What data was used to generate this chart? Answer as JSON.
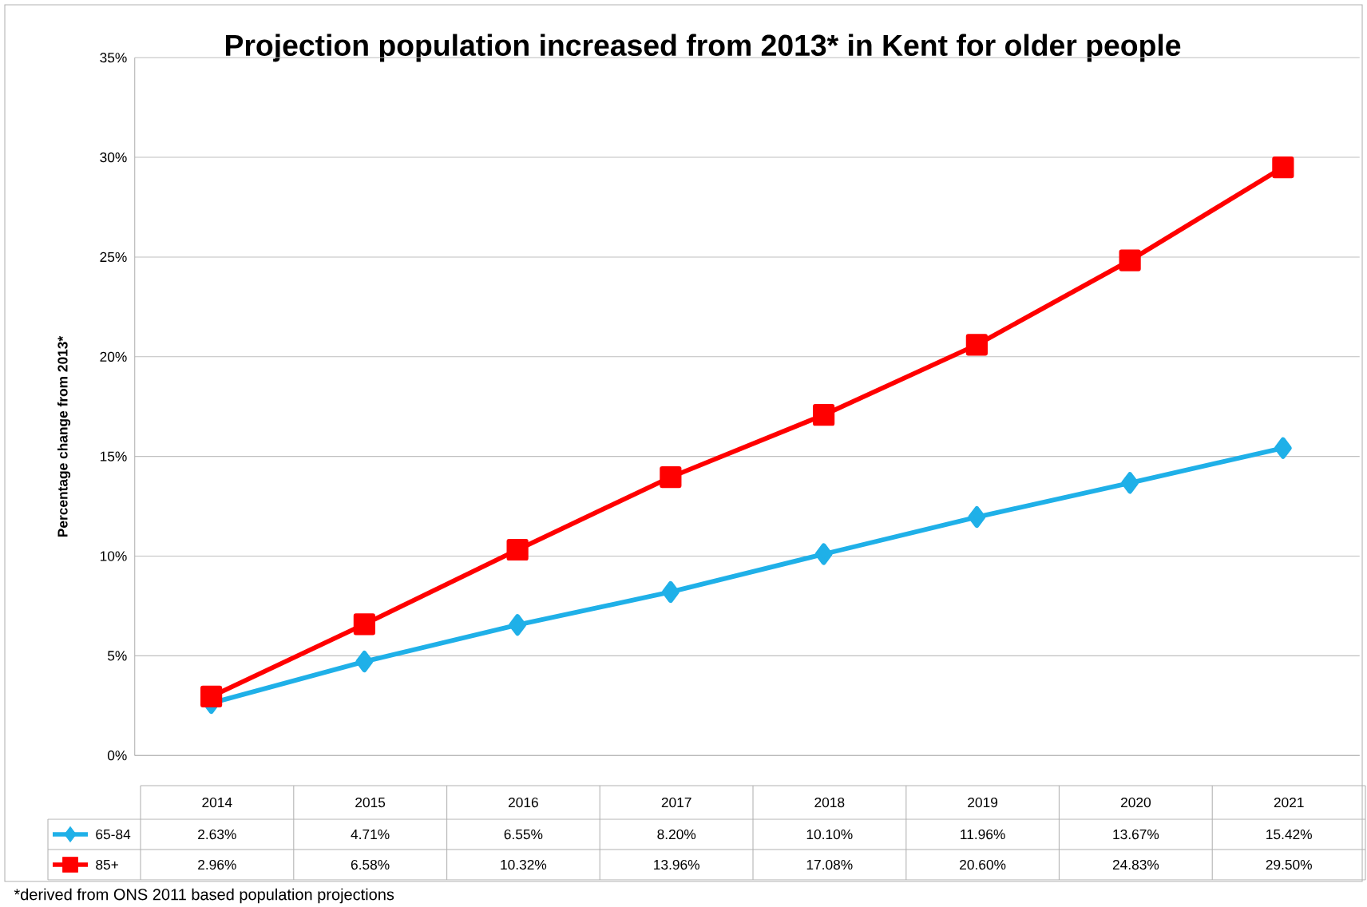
{
  "chart_data": {
    "type": "line",
    "title": "Projection population increased from 2013* in Kent for older people",
    "ylabel": "Percentage change from 2013*",
    "categories": [
      "2014",
      "2015",
      "2016",
      "2017",
      "2018",
      "2019",
      "2020",
      "2021"
    ],
    "series": [
      {
        "name": "65-84",
        "color": "#1fb0e8",
        "marker": "diamond",
        "values": [
          2.63,
          4.71,
          6.55,
          8.2,
          10.1,
          11.96,
          13.67,
          15.42
        ],
        "value_labels": [
          "2.63%",
          "4.71%",
          "6.55%",
          "8.20%",
          "10.10%",
          "11.96%",
          "13.67%",
          "15.42%"
        ]
      },
      {
        "name": "85+",
        "color": "#ff0000",
        "marker": "square",
        "values": [
          2.96,
          6.58,
          10.32,
          13.96,
          17.08,
          20.6,
          24.83,
          29.5
        ],
        "value_labels": [
          "2.96%",
          "6.58%",
          "10.32%",
          "13.96%",
          "17.08%",
          "20.60%",
          "24.83%",
          "29.50%"
        ]
      }
    ],
    "ylim": [
      0,
      35
    ],
    "yticks": [
      {
        "value": 0,
        "label": "0%"
      },
      {
        "value": 5,
        "label": "5%"
      },
      {
        "value": 10,
        "label": "10%"
      },
      {
        "value": 15,
        "label": "15%"
      },
      {
        "value": 20,
        "label": "20%"
      },
      {
        "value": 25,
        "label": "25%"
      },
      {
        "value": 30,
        "label": "30%"
      },
      {
        "value": 35,
        "label": "35%"
      }
    ],
    "grid": "y",
    "legend": "bottom",
    "line_style": "solid",
    "annotations": [
      "*derived from ONS 2011 based population projections"
    ]
  }
}
